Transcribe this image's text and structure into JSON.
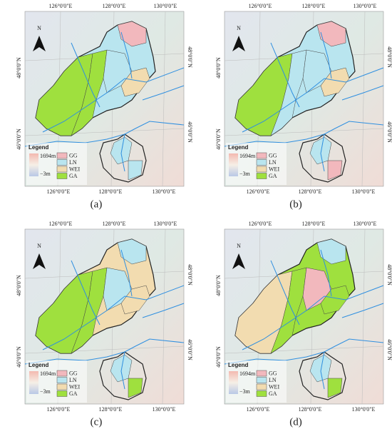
{
  "panels": [
    {
      "label": "(a)"
    },
    {
      "label": "(b)"
    },
    {
      "label": "(c)"
    },
    {
      "label": "(d)"
    }
  ],
  "map": {
    "x_labels": [
      "126°0'0\"E",
      "128°0'0\"E",
      "130°0'0\"E"
    ],
    "y_labels": [
      "48°0'0\"N",
      "46°0'0\"N"
    ],
    "north": "N",
    "legend": {
      "title": "Legend",
      "elevation_max": "1694m",
      "elevation_min": "−3m",
      "classes": [
        "GG",
        "LN",
        "WEI",
        "GA"
      ]
    }
  }
}
